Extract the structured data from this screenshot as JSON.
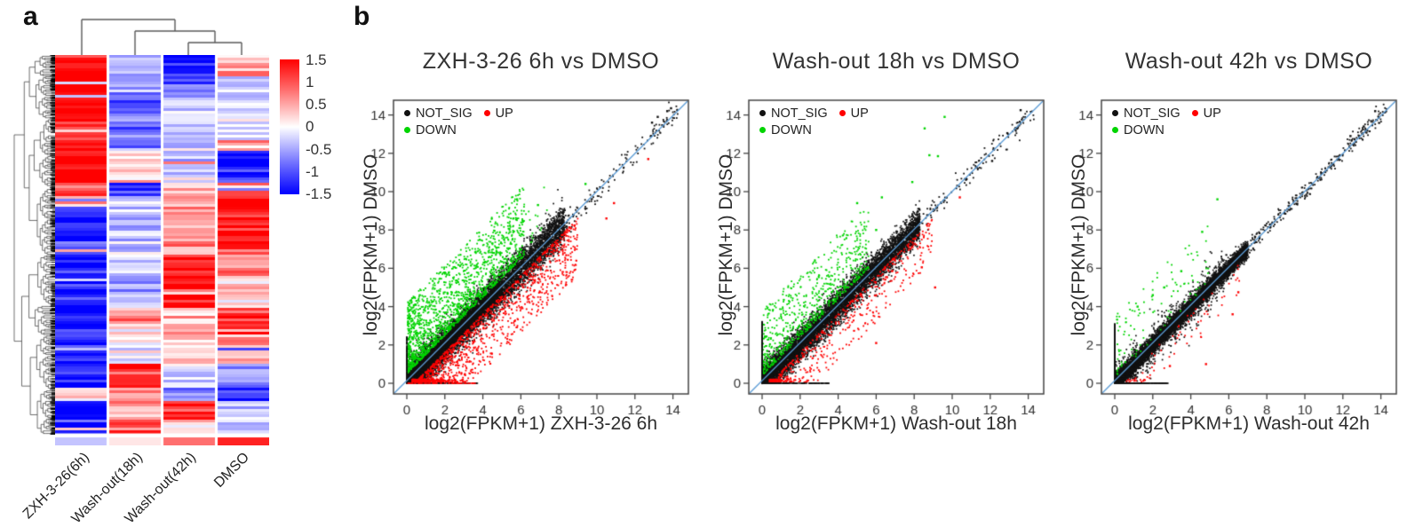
{
  "panels": {
    "a": "a",
    "b": "b"
  },
  "chart_data": [
    {
      "type": "heatmap",
      "panel": "a",
      "columns": [
        "ZXH-3-26(6h)",
        "Wash-out(18h)",
        "Wash-out(42h)",
        "DMSO"
      ],
      "colorbar": {
        "ticks": [
          "1.5",
          "1",
          "0.5",
          "0",
          "-0.5",
          "-1",
          "-1.5"
        ],
        "max_color": "#ff0000",
        "mid_color": "#ffffff",
        "min_color": "#0000ff"
      },
      "scale": {
        "min": -1.5,
        "max": 1.5
      },
      "column_dendrogram": {
        "join_order": [
          [
            "Wash-out(42h)",
            "DMSO"
          ],
          [
            "Wash-out(18h)",
            "(Wash-out(42h),DMSO)"
          ],
          [
            "ZXH-3-26(6h)",
            "rest"
          ]
        ]
      },
      "row_segments": [
        {
          "frac": 0.055,
          "values": [
            1.5,
            -0.55,
            -1.25,
            0.45
          ]
        },
        {
          "frac": 0.042,
          "values": [
            1.5,
            -0.7,
            -0.9,
            -0.45
          ]
        },
        {
          "frac": 0.057,
          "values": [
            1.5,
            -0.9,
            -0.3,
            -0.3
          ]
        },
        {
          "frac": 0.077,
          "values": [
            1.45,
            -0.75,
            -0.3,
            -0.25
          ]
        },
        {
          "frac": 0.023,
          "values": [
            1.4,
            -0.6,
            -0.25,
            0.35
          ]
        },
        {
          "frac": 0.082,
          "values": [
            1.4,
            0.3,
            -0.45,
            -1.3
          ]
        },
        {
          "frac": 0.04,
          "values": [
            1.0,
            -1.35,
            0.15,
            0.7
          ]
        },
        {
          "frac": 0.026,
          "values": [
            0.35,
            -0.5,
            0.4,
            1.5
          ]
        },
        {
          "frac": 0.11,
          "values": [
            -1.25,
            -0.45,
            0.55,
            1.45
          ]
        },
        {
          "frac": 0.07,
          "values": [
            -1.35,
            -0.2,
            1.4,
            0.75
          ]
        },
        {
          "frac": 0.086,
          "values": [
            -1.35,
            -0.45,
            1.3,
            0.15
          ]
        },
        {
          "frac": 0.054,
          "values": [
            -1.4,
            0.55,
            0.35,
            1.2
          ]
        },
        {
          "frac": 0.093,
          "values": [
            -1.3,
            -0.1,
            0.3,
            0.55
          ]
        },
        {
          "frac": 0.063,
          "values": [
            -1.2,
            1.4,
            -0.2,
            -0.5
          ]
        },
        {
          "frac": 0.037,
          "values": [
            0.15,
            0.7,
            -0.6,
            -1.2
          ]
        },
        {
          "frac": 0.047,
          "values": [
            -1.3,
            0.6,
            1.1,
            -0.3
          ]
        },
        {
          "frac": 0.038,
          "values": [
            -1.25,
            1.3,
            0.3,
            -0.55
          ]
        }
      ],
      "annotation_row_values": [
        -0.35,
        0.15,
        0.85,
        1.3
      ],
      "noise": 0.5
    },
    {
      "type": "scatter",
      "panel": "b",
      "title": "ZXH-3-26 6h vs DMSO",
      "xlabel": "log2(FPKM+1) ZXH-3-26 6h",
      "ylabel": "log2(FPKM+1) DMSO",
      "xlim": [
        0,
        15
      ],
      "ylim": [
        0,
        15
      ],
      "ticks": [
        0,
        2,
        4,
        6,
        8,
        10,
        12,
        14
      ],
      "diag_color": "#5b9bd5",
      "legend": [
        {
          "label": "NOT_SIG",
          "color": "#111111"
        },
        {
          "label": "UP",
          "color": "#ff0000"
        },
        {
          "label": "DOWN",
          "color": "#00d400"
        }
      ],
      "seed": 11,
      "clusters": [
        {
          "kind": "band",
          "n": 6500,
          "max": 8.3,
          "pow": 1.25,
          "spread": 0.5,
          "color": "black"
        },
        {
          "kind": "band",
          "n": 2000,
          "max": 5.0,
          "pow": 1.0,
          "spread": 0.3,
          "color": "black"
        },
        {
          "kind": "tail",
          "n": 150,
          "min": 8.0,
          "max": 14.3,
          "spread": 0.28,
          "color": "black"
        },
        {
          "kind": "above",
          "n": 1500,
          "xmin": 0.05,
          "xmax": 6.2,
          "xpow": 1.5,
          "offMin": 0.5,
          "offMax": 4.2,
          "offPow": 1.8,
          "color": "green"
        },
        {
          "kind": "above",
          "n": 70,
          "xmin": 2.5,
          "xmax": 7.5,
          "xpow": 1.0,
          "offMin": 0.8,
          "offMax": 3.6,
          "offPow": 1.0,
          "color": "green"
        },
        {
          "kind": "below",
          "n": 1350,
          "xmin": 0.3,
          "xmax": 9.0,
          "xpow": 1.4,
          "offMin": 0.4,
          "offMax": 3.4,
          "offPow": 1.8,
          "color": "red"
        },
        {
          "kind": "row0",
          "n": 90,
          "xmax": 3.7,
          "color": "black"
        },
        {
          "kind": "row0",
          "n": 55,
          "xmax": 3.7,
          "color": "red"
        },
        {
          "kind": "col0",
          "n": 90,
          "ymax": 2.4,
          "color": "black"
        },
        {
          "kind": "pts",
          "color": "red",
          "pts": [
            [
              12.7,
              11.7
            ],
            [
              10.9,
              9.4
            ],
            [
              10.5,
              8.6
            ]
          ]
        },
        {
          "kind": "pts",
          "color": "green",
          "pts": [
            [
              5.8,
              9.6
            ],
            [
              6.9,
              9.3
            ],
            [
              9.4,
              10.4
            ]
          ]
        },
        {
          "kind": "pts",
          "color": "black",
          "pts": [
            [
              13.7,
              14.2
            ],
            [
              13.2,
              13.9
            ],
            [
              12.9,
              13.6
            ],
            [
              13.9,
              14.35
            ]
          ]
        }
      ]
    },
    {
      "type": "scatter",
      "panel": "b",
      "title": "Wash-out 18h vs DMSO",
      "xlabel": "log2(FPKM+1) Wash-out 18h",
      "ylabel": "log2(FPKM+1) DMSO",
      "xlim": [
        0,
        15
      ],
      "ylim": [
        0,
        15
      ],
      "ticks": [
        0,
        2,
        4,
        6,
        8,
        10,
        12,
        14
      ],
      "diag_color": "#5b9bd5",
      "legend": [
        {
          "label": "NOT_SIG",
          "color": "#111111"
        },
        {
          "label": "UP",
          "color": "#ff0000"
        },
        {
          "label": "DOWN",
          "color": "#00d400"
        }
      ],
      "seed": 22,
      "clusters": [
        {
          "kind": "band",
          "n": 7000,
          "max": 8.3,
          "pow": 1.35,
          "spread": 0.42,
          "color": "black"
        },
        {
          "kind": "tail",
          "n": 140,
          "min": 8.0,
          "max": 14.3,
          "spread": 0.3,
          "color": "black"
        },
        {
          "kind": "above",
          "n": 640,
          "xmin": 0.05,
          "xmax": 5.6,
          "xpow": 1.3,
          "offMin": 0.4,
          "offMax": 3.8,
          "offPow": 1.7,
          "color": "green"
        },
        {
          "kind": "below",
          "n": 520,
          "xmin": 0.4,
          "xmax": 9.0,
          "xpow": 1.5,
          "offMin": 0.4,
          "offMax": 2.8,
          "offPow": 1.7,
          "color": "red"
        },
        {
          "kind": "row0",
          "n": 110,
          "xmax": 3.6,
          "color": "black"
        },
        {
          "kind": "col0",
          "n": 180,
          "ymax": 3.2,
          "color": "black"
        },
        {
          "kind": "pts",
          "color": "green",
          "pts": [
            [
              8.8,
              11.9
            ],
            [
              9.25,
              11.85
            ],
            [
              9.6,
              13.9
            ],
            [
              8.55,
              13.3
            ],
            [
              6.3,
              9.7
            ],
            [
              5.0,
              9.4
            ],
            [
              7.9,
              10.5
            ],
            [
              6.0,
              8.0
            ]
          ]
        },
        {
          "kind": "pts",
          "color": "red",
          "pts": [
            [
              10.4,
              9.7
            ],
            [
              8.4,
              6.05
            ],
            [
              9.1,
              5.0
            ],
            [
              6.0,
              2.1
            ]
          ]
        },
        {
          "kind": "pts",
          "color": "black",
          "pts": [
            [
              13.6,
              14.25
            ],
            [
              12.9,
              13.05
            ],
            [
              12.1,
              11.6
            ]
          ]
        }
      ]
    },
    {
      "type": "scatter",
      "panel": "b",
      "title": "Wash-out 42h vs DMSO",
      "xlabel": "log2(FPKM+1) Wash-out 42h",
      "ylabel": "log2(FPKM+1) DMSO",
      "xlim": [
        0,
        15
      ],
      "ylim": [
        0,
        15
      ],
      "ticks": [
        0,
        2,
        4,
        6,
        8,
        10,
        12,
        14
      ],
      "diag_color": "#5b9bd5",
      "legend": [
        {
          "label": "NOT_SIG",
          "color": "#111111"
        },
        {
          "label": "UP",
          "color": "#ff0000"
        },
        {
          "label": "DOWN",
          "color": "#00d400"
        }
      ],
      "seed": 33,
      "clusters": [
        {
          "kind": "band",
          "n": 7500,
          "max": 7.0,
          "pow": 1.35,
          "spread": 0.22,
          "color": "black"
        },
        {
          "kind": "band",
          "n": 900,
          "max": 6.0,
          "pow": 1.1,
          "spread": 0.55,
          "color": "black"
        },
        {
          "kind": "tail",
          "n": 280,
          "min": 7.0,
          "max": 14.3,
          "spread": 0.22,
          "color": "black"
        },
        {
          "kind": "above",
          "n": 110,
          "xmin": 0.1,
          "xmax": 5.0,
          "xpow": 1.6,
          "offMin": 0.3,
          "offMax": 3.6,
          "offPow": 1.5,
          "color": "green"
        },
        {
          "kind": "below",
          "n": 70,
          "xmin": 0.6,
          "xmax": 6.6,
          "xpow": 1.2,
          "offMin": 0.3,
          "offMax": 2.2,
          "offPow": 1.5,
          "color": "red"
        },
        {
          "kind": "row0",
          "n": 120,
          "xmax": 2.8,
          "color": "black"
        },
        {
          "kind": "col0",
          "n": 220,
          "ymax": 3.1,
          "color": "black"
        },
        {
          "kind": "pts",
          "color": "green",
          "pts": [
            [
              5.4,
              9.6
            ],
            [
              4.6,
              7.9
            ],
            [
              3.5,
              5.85
            ],
            [
              2.0,
              4.6
            ],
            [
              1.2,
              4.0
            ],
            [
              2.6,
              5.0
            ]
          ]
        },
        {
          "kind": "pts",
          "color": "red",
          "pts": [
            [
              4.8,
              1.0
            ],
            [
              6.5,
              4.75
            ],
            [
              6.2,
              3.6
            ],
            [
              2.9,
              0.9
            ]
          ]
        },
        {
          "kind": "pts",
          "color": "black",
          "pts": [
            [
              13.7,
              14.2
            ],
            [
              13.1,
              13.4
            ],
            [
              12.4,
              12.9
            ]
          ]
        }
      ]
    }
  ],
  "point_palette": {
    "black": "#111111",
    "red": "#ff0000",
    "green": "#00d400"
  }
}
